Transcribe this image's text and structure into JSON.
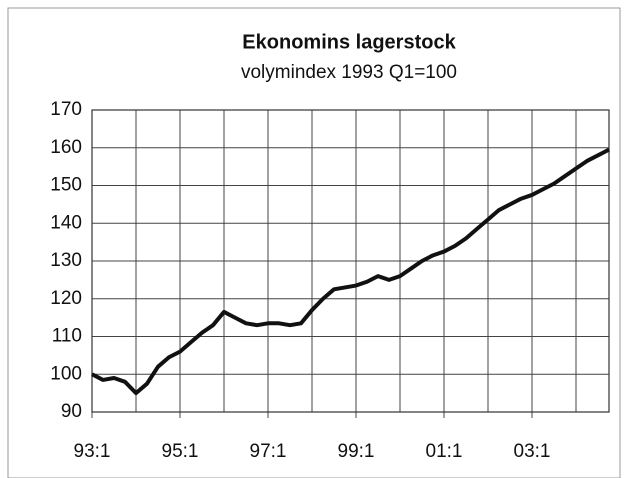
{
  "chart_data": {
    "type": "line",
    "title": "Ekonomins lagerstock",
    "subtitle": "volymindex 1993 Q1=100",
    "categories": [
      "93:1",
      null,
      null,
      null,
      null,
      null,
      null,
      null,
      "95:1",
      null,
      null,
      null,
      null,
      null,
      null,
      null,
      "97:1",
      null,
      null,
      null,
      null,
      null,
      null,
      null,
      "99:1",
      null,
      null,
      null,
      null,
      null,
      null,
      null,
      "01:1",
      null,
      null,
      null,
      null,
      null,
      null,
      null,
      "03:1",
      null,
      null,
      null,
      null,
      null,
      null,
      null
    ],
    "series": [
      {
        "name": "Lagerstock",
        "color": "#111111",
        "values": [
          100,
          98.5,
          99,
          98,
          95,
          97.5,
          102,
          104.5,
          106,
          108.5,
          111,
          113,
          116.5,
          115,
          113.5,
          113,
          113.5,
          113.5,
          113,
          113.5,
          117,
          120,
          122.5,
          123,
          123.5,
          124.5,
          126,
          125,
          126,
          128,
          130,
          131.5,
          132.5,
          134,
          136,
          138.5,
          141,
          143.5,
          145,
          146.5,
          147.5,
          149,
          150.5,
          152.5,
          154.5,
          156.5,
          158,
          159.5
        ]
      }
    ],
    "ylim": [
      90,
      170
    ],
    "yticks": [
      90,
      100,
      110,
      120,
      130,
      140,
      150,
      160,
      170
    ],
    "grid": true
  }
}
